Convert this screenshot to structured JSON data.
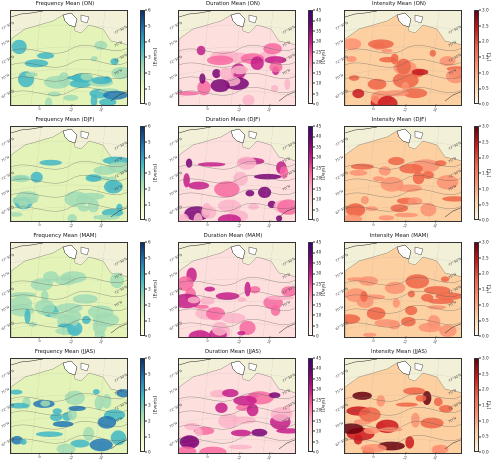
{
  "colorbars": {
    "frequency": {
      "unit": "[Events]",
      "ticks": [
        "6",
        "5",
        "4",
        "3",
        "2",
        "1",
        "0"
      ],
      "colors": [
        "#08306b",
        "#1f77b4",
        "#41b6c4",
        "#a1dab4",
        "#e4f4b8",
        "#ffffe5"
      ]
    },
    "duration": {
      "unit": "[Days]",
      "ticks": [
        "45",
        "40",
        "35",
        "30",
        "25",
        "20",
        "15",
        "10",
        "5",
        "0"
      ],
      "colors": [
        "#3f007d",
        "#7a0177",
        "#c51b8a",
        "#f768a1",
        "#fbb4c9",
        "#fde0dd",
        "#fff7f3"
      ]
    },
    "intensity": {
      "unit": "[°C]",
      "ticks": [
        "3.0",
        "2.5",
        "2.0",
        "1.5",
        "1.0",
        "0.5",
        "0.0"
      ],
      "colors": [
        "#67000d",
        "#cb181d",
        "#ef6548",
        "#fc9272",
        "#fdd0a2",
        "#fff5eb"
      ]
    }
  },
  "latlabels": [
    "77°30'N",
    "75°N",
    "72°30'N",
    "70°N"
  ],
  "latlabels_left": [
    "77°30'N",
    "75°N",
    "72°30'N",
    "70°N",
    "67°30'N"
  ],
  "lonlabels": [
    "0°",
    "15°E",
    "30°E"
  ],
  "panels": [
    {
      "title": "Frequency Mean (ON)",
      "var": "frequency",
      "season": "ON",
      "intensity_level": 0.55
    },
    {
      "title": "Duration Mean (ON)",
      "var": "duration",
      "season": "ON",
      "intensity_level": 0.75
    },
    {
      "title": "Intensity Mean (ON)",
      "var": "intensity",
      "season": "ON",
      "intensity_level": 0.55
    },
    {
      "title": "Frequency Mean (DJF)",
      "var": "frequency",
      "season": "DJF",
      "intensity_level": 0.5
    },
    {
      "title": "Duration Mean (DJF)",
      "var": "duration",
      "season": "DJF",
      "intensity_level": 0.8
    },
    {
      "title": "Intensity Mean (DJF)",
      "var": "intensity",
      "season": "DJF",
      "intensity_level": 0.4
    },
    {
      "title": "Frequency Mean (MAM)",
      "var": "frequency",
      "season": "MAM",
      "intensity_level": 0.45
    },
    {
      "title": "Duration Mean (MAM)",
      "var": "duration",
      "season": "MAM",
      "intensity_level": 0.5
    },
    {
      "title": "Intensity Mean (MAM)",
      "var": "intensity",
      "season": "MAM",
      "intensity_level": 0.5
    },
    {
      "title": "Frequency Mean (JJAS)",
      "var": "frequency",
      "season": "JJAS",
      "intensity_level": 0.6
    },
    {
      "title": "Duration Mean (JJAS)",
      "var": "duration",
      "season": "JJAS",
      "intensity_level": 0.65
    },
    {
      "title": "Intensity Mean (JJAS)",
      "var": "intensity",
      "season": "JJAS",
      "intensity_level": 0.9
    }
  ]
}
